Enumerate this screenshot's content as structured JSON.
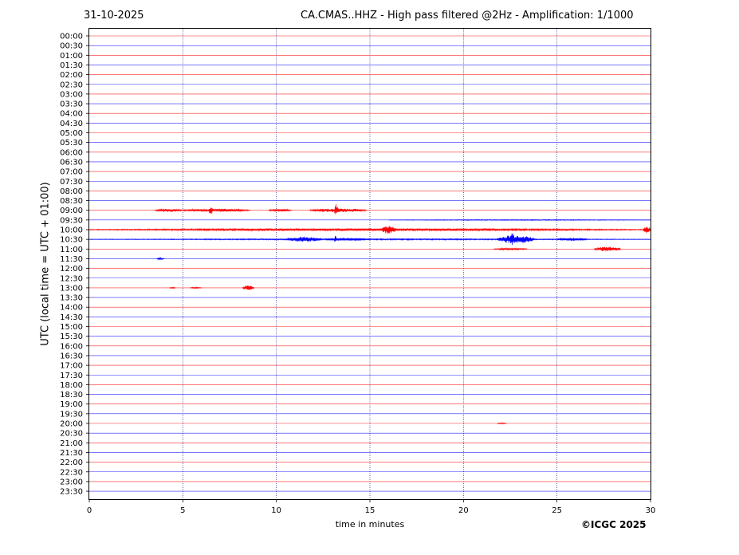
{
  "header": {
    "date": "31-10-2025",
    "title": "CA.CMAS..HHZ - High pass filtered @2Hz - Amplification: 1/1000"
  },
  "footer": {
    "copyright": "©ICGC 2025"
  },
  "chart_data": {
    "type": "line",
    "title": "CA.CMAS..HHZ - High pass filtered @2Hz - Amplification: 1/1000",
    "xlabel": "time in minutes",
    "ylabel": "UTC (local time = UTC + 01:00)",
    "xlim": [
      0,
      30
    ],
    "x_ticks": [
      "0",
      "5",
      "10",
      "15",
      "20",
      "25",
      "30"
    ],
    "grid": "vertical dotted at every 5 minutes",
    "trace_colors": [
      "#ff0000",
      "#0000ff"
    ],
    "rows": [
      "00:00",
      "00:30",
      "01:00",
      "01:30",
      "02:00",
      "02:30",
      "03:00",
      "03:30",
      "04:00",
      "04:30",
      "05:00",
      "05:30",
      "06:00",
      "06:30",
      "07:00",
      "07:30",
      "08:00",
      "08:30",
      "09:00",
      "09:30",
      "10:00",
      "10:30",
      "11:00",
      "11:30",
      "12:00",
      "12:30",
      "13:00",
      "13:30",
      "14:00",
      "14:30",
      "15:00",
      "15:30",
      "16:00",
      "16:30",
      "17:00",
      "17:30",
      "18:00",
      "18:30",
      "19:00",
      "19:30",
      "20:00",
      "20:30",
      "21:00",
      "21:30",
      "22:00",
      "22:30",
      "23:00",
      "23:30"
    ],
    "events": [
      {
        "row": "09:00",
        "start": 3.5,
        "end": 5.0,
        "amplitude": 0.2
      },
      {
        "row": "09:00",
        "start": 5.0,
        "end": 8.6,
        "amplitude": 0.2
      },
      {
        "row": "09:00",
        "start": 6.4,
        "end": 6.6,
        "amplitude": 0.65
      },
      {
        "row": "09:00",
        "start": 9.6,
        "end": 10.8,
        "amplitude": 0.18
      },
      {
        "row": "09:00",
        "start": 11.8,
        "end": 14.8,
        "amplitude": 0.25
      },
      {
        "row": "09:00",
        "start": 13.1,
        "end": 13.3,
        "amplitude": 0.85
      },
      {
        "row": "09:30",
        "start": 16.0,
        "end": 30.0,
        "amplitude": 0.05
      },
      {
        "row": "10:00",
        "start": 0.0,
        "end": 30.0,
        "amplitude": 0.15
      },
      {
        "row": "10:00",
        "start": 15.6,
        "end": 16.4,
        "amplitude": 0.55
      },
      {
        "row": "10:00",
        "start": 29.6,
        "end": 30.0,
        "amplitude": 0.45
      },
      {
        "row": "10:30",
        "start": 0.0,
        "end": 30.0,
        "amplitude": 0.08
      },
      {
        "row": "10:30",
        "start": 10.6,
        "end": 12.4,
        "amplitude": 0.35
      },
      {
        "row": "10:30",
        "start": 13.1,
        "end": 13.2,
        "amplitude": 0.6
      },
      {
        "row": "10:30",
        "start": 12.6,
        "end": 15.0,
        "amplitude": 0.15
      },
      {
        "row": "10:30",
        "start": 21.8,
        "end": 23.8,
        "amplitude": 0.55
      },
      {
        "row": "10:30",
        "start": 22.5,
        "end": 22.7,
        "amplitude": 1.0
      },
      {
        "row": "10:30",
        "start": 25.0,
        "end": 26.6,
        "amplitude": 0.2
      },
      {
        "row": "11:00",
        "start": 21.6,
        "end": 23.4,
        "amplitude": 0.12
      },
      {
        "row": "11:00",
        "start": 27.0,
        "end": 28.4,
        "amplitude": 0.3
      },
      {
        "row": "11:30",
        "start": 3.6,
        "end": 4.0,
        "amplitude": 0.12
      },
      {
        "row": "13:00",
        "start": 4.3,
        "end": 4.6,
        "amplitude": 0.08
      },
      {
        "row": "13:00",
        "start": 5.4,
        "end": 6.0,
        "amplitude": 0.08
      },
      {
        "row": "13:00",
        "start": 8.2,
        "end": 8.8,
        "amplitude": 0.35
      },
      {
        "row": "20:00",
        "start": 21.8,
        "end": 22.3,
        "amplitude": 0.08
      }
    ]
  }
}
